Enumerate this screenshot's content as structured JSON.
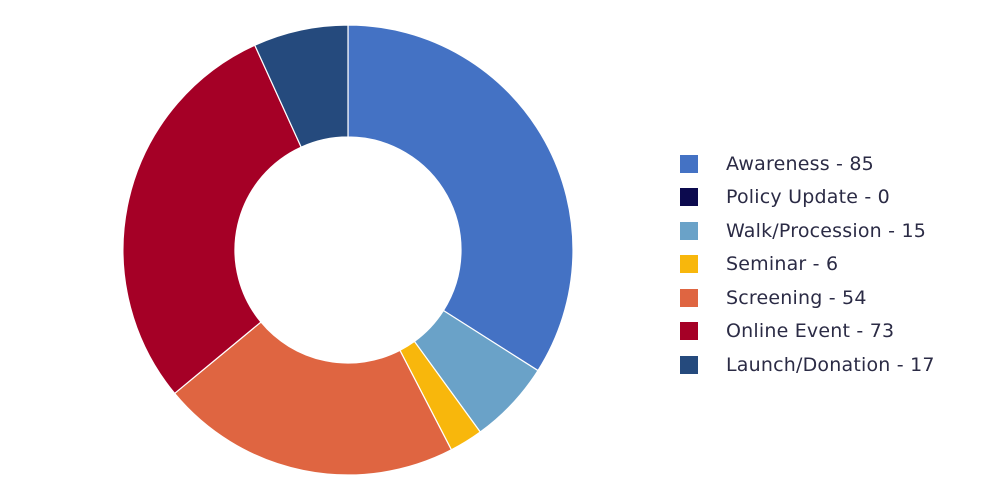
{
  "chart_data": {
    "type": "pie",
    "categories": [
      "Awareness",
      "Policy Update",
      "Walk/Procession",
      "Seminar",
      "Screening",
      "Online Event",
      "Launch/Donation"
    ],
    "values": [
      85,
      0,
      15,
      6,
      54,
      73,
      17
    ],
    "colors": [
      "#4472c4",
      "#0c0a4e",
      "#6aa2c8",
      "#f8b70c",
      "#df6541",
      "#a50026",
      "#254a7d"
    ],
    "legend_labels": [
      "Awareness - 85",
      "Policy Update - 0",
      "Walk/Procession - 15",
      "Seminar - 6",
      "Screening - 54",
      "Online Event - 73",
      "Launch/Donation - 17"
    ],
    "legend_position": "right",
    "donut": true,
    "start_angle": "12 o'clock",
    "direction": "clockwise"
  }
}
